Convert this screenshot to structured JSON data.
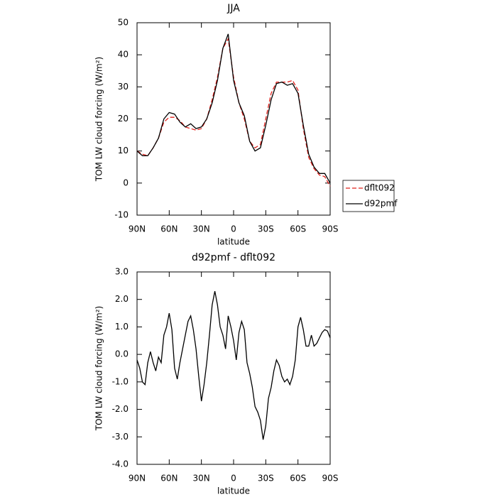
{
  "chart_data": [
    {
      "type": "line",
      "title": "JJA",
      "x_label": "latitude",
      "y_label": "TOM LW cloud forcing (W/m²)",
      "x": [
        90,
        85,
        80,
        75,
        70,
        65,
        60,
        55,
        50,
        45,
        40,
        35,
        30,
        25,
        20,
        15,
        10,
        5,
        0,
        -5,
        -10,
        -15,
        -20,
        -25,
        -30,
        -35,
        -40,
        -45,
        -50,
        -55,
        -60,
        -65,
        -70,
        -75,
        -80,
        -85,
        -90
      ],
      "series": [
        {
          "name": "dflt092",
          "color": "#e0201b",
          "dashed": true,
          "values": [
            10,
            9,
            8.5,
            11,
            14,
            19,
            20.5,
            20.5,
            19.5,
            17.5,
            17,
            16.5,
            17,
            20,
            26,
            33,
            42,
            45,
            33,
            25,
            20,
            13,
            11,
            12,
            20,
            28,
            31.5,
            31.5,
            31.5,
            32,
            29,
            17,
            8,
            4.5,
            2.5,
            2,
            -1
          ]
        },
        {
          "name": "d92pmf",
          "color": "#000000",
          "dashed": false,
          "values": [
            10,
            8.5,
            8.5,
            11,
            14,
            20,
            22,
            21.5,
            19,
            17.5,
            18.5,
            17,
            17.5,
            20,
            25,
            32,
            42,
            46.5,
            32,
            25,
            21,
            13,
            10,
            11,
            18,
            26,
            31,
            31.5,
            30.5,
            31,
            28,
            18,
            9,
            5,
            3,
            3,
            0
          ]
        }
      ],
      "xlim": [
        90,
        -90
      ],
      "xticks": [
        {
          "value": 90,
          "label": "90N"
        },
        {
          "value": 60,
          "label": "60N"
        },
        {
          "value": 30,
          "label": "30N"
        },
        0,
        {
          "value": -30,
          "label": "30S"
        },
        {
          "value": -60,
          "label": "60S"
        },
        {
          "value": -90,
          "label": "90S"
        }
      ],
      "ylim": [
        -10,
        50
      ],
      "yticks": [
        -10,
        0,
        10,
        20,
        30,
        40,
        50
      ],
      "legend": "right"
    },
    {
      "type": "line",
      "title": "d92pmf - dflt092",
      "x_label": "latitude",
      "y_label": "TOM LW cloud forcing (W/m²)",
      "x": [
        90,
        87.5,
        85,
        82.5,
        80,
        77.5,
        75,
        72.5,
        70,
        67.5,
        65,
        62.5,
        60,
        57.5,
        55,
        52.5,
        50,
        47.5,
        45,
        42.5,
        40,
        37.5,
        35,
        32.5,
        30,
        27.5,
        25,
        22.5,
        20,
        17.5,
        15,
        12.5,
        10,
        7.5,
        5,
        2.5,
        0,
        -2.5,
        -5,
        -7.5,
        -10,
        -12.5,
        -15,
        -17.5,
        -20,
        -22.5,
        -25,
        -27.5,
        -30,
        -32.5,
        -35,
        -37.5,
        -40,
        -42.5,
        -45,
        -47.5,
        -50,
        -52.5,
        -55,
        -57.5,
        -60,
        -62.5,
        -65,
        -67.5,
        -70,
        -72.5,
        -75,
        -77.5,
        -80,
        -82.5,
        -85,
        -87.5,
        -90
      ],
      "values": [
        -0.2,
        -0.5,
        -1.0,
        -1.1,
        -0.3,
        0.1,
        -0.3,
        -0.6,
        -0.1,
        -0.3,
        0.7,
        1.0,
        1.5,
        0.9,
        -0.5,
        -0.9,
        -0.3,
        0.2,
        0.7,
        1.2,
        1.4,
        0.9,
        0.2,
        -0.8,
        -1.7,
        -1.1,
        -0.3,
        0.7,
        1.8,
        2.3,
        1.8,
        1.0,
        0.7,
        0.2,
        1.4,
        1.0,
        0.5,
        -0.2,
        0.8,
        1.2,
        0.9,
        -0.3,
        -0.7,
        -1.2,
        -1.9,
        -2.1,
        -2.4,
        -3.1,
        -2.6,
        -1.6,
        -1.2,
        -0.6,
        -0.2,
        -0.4,
        -0.8,
        -1.0,
        -0.9,
        -1.1,
        -0.8,
        -0.2,
        1.0,
        1.35,
        0.9,
        0.3,
        0.3,
        0.7,
        0.3,
        0.4,
        0.6,
        0.8,
        0.9,
        0.85,
        0.6
      ],
      "color": "#000000",
      "xlim": [
        90,
        -90
      ],
      "xticks": [
        {
          "value": 90,
          "label": "90N"
        },
        {
          "value": 60,
          "label": "60N"
        },
        {
          "value": 30,
          "label": "30N"
        },
        0,
        {
          "value": -30,
          "label": "30S"
        },
        {
          "value": -60,
          "label": "60S"
        },
        {
          "value": -90,
          "label": "90S"
        }
      ],
      "ylim": [
        -4,
        3
      ],
      "yticks": [
        {
          "value": -4,
          "label": "-4.0"
        },
        {
          "value": -3,
          "label": "-3.0"
        },
        {
          "value": -2,
          "label": "-2.0"
        },
        {
          "value": -1,
          "label": "-1.0"
        },
        {
          "value": 0,
          "label": "0.0"
        },
        {
          "value": 1,
          "label": "1.0"
        },
        {
          "value": 2,
          "label": "2.0"
        },
        {
          "value": 3,
          "label": "3.0"
        }
      ]
    }
  ]
}
